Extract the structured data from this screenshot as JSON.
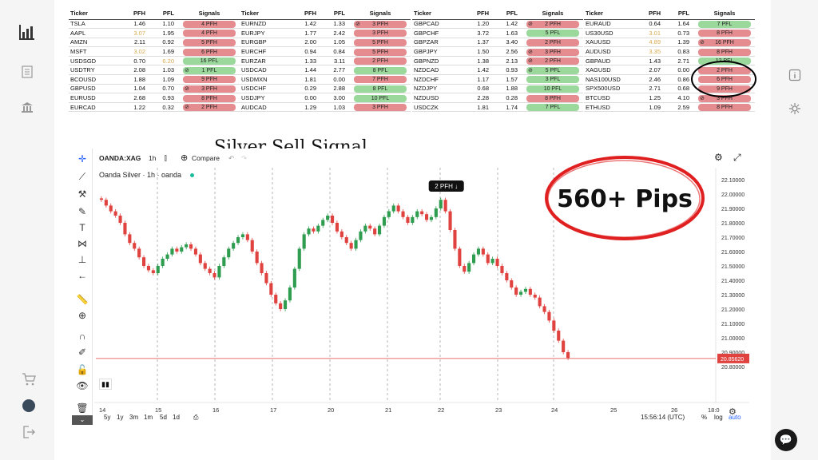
{
  "left_sidebar": {
    "items": [
      "chart-bar-icon",
      "document-icon",
      "bank-icon",
      "cart-icon",
      "user-avatar",
      "logout-icon"
    ]
  },
  "right_sidebar": {
    "items": [
      "info-icon",
      "settings-icon"
    ]
  },
  "tables": [
    {
      "headers": [
        "Ticker",
        "PFH",
        "PFL",
        "Signals"
      ],
      "rows": [
        {
          "ticker": "TSLA",
          "pfh": "1.46",
          "pfl": "1.10",
          "signal": "4 PFH",
          "type": "pfh",
          "icon": false,
          "highlight": false
        },
        {
          "ticker": "AAPL",
          "pfh": "3.07",
          "pfl": "1.95",
          "signal": "4 PFH",
          "type": "pfh",
          "icon": false,
          "highlight": true
        },
        {
          "ticker": "AMZN",
          "pfh": "2.11",
          "pfl": "0.92",
          "signal": "5 PFH",
          "type": "pfh",
          "icon": false,
          "highlight": false
        },
        {
          "ticker": "MSFT",
          "pfh": "3.02",
          "pfl": "1.69",
          "signal": "6 PFH",
          "type": "pfh",
          "icon": false,
          "highlight": true
        },
        {
          "ticker": "USDSGD",
          "pfh": "0.70",
          "pfl": "6.20",
          "signal": "16 PFL",
          "type": "pfl",
          "icon": false,
          "highlight_pfl": true
        },
        {
          "ticker": "USDTRY",
          "pfh": "2.08",
          "pfl": "1.03",
          "signal": "1 PFL",
          "type": "pfl",
          "icon": true
        },
        {
          "ticker": "BCOUSD",
          "pfh": "1.88",
          "pfl": "1.09",
          "signal": "9 PFH",
          "type": "pfh",
          "icon": false
        },
        {
          "ticker": "GBPUSD",
          "pfh": "1.04",
          "pfl": "0.70",
          "signal": "3 PFH",
          "type": "pfh",
          "icon": true
        },
        {
          "ticker": "EURUSD",
          "pfh": "2.68",
          "pfl": "0.93",
          "signal": "8 PFH",
          "type": "pfh",
          "icon": false
        },
        {
          "ticker": "EURCAD",
          "pfh": "1.22",
          "pfl": "0.32",
          "signal": "2 PFH",
          "type": "pfh",
          "icon": true
        }
      ]
    },
    {
      "headers": [
        "Ticker",
        "PFH",
        "PFL",
        "Signals"
      ],
      "rows": [
        {
          "ticker": "EURNZD",
          "pfh": "1.42",
          "pfl": "1.33",
          "signal": "3 PFH",
          "type": "pfh",
          "icon": true
        },
        {
          "ticker": "EURJPY",
          "pfh": "1.77",
          "pfl": "2.42",
          "signal": "3 PFH",
          "type": "pfh",
          "icon": false
        },
        {
          "ticker": "EURGBP",
          "pfh": "2.00",
          "pfl": "1.05",
          "signal": "5 PFH",
          "type": "pfh",
          "icon": false
        },
        {
          "ticker": "EURCHF",
          "pfh": "0.94",
          "pfl": "0.84",
          "signal": "5 PFH",
          "type": "pfh",
          "icon": false
        },
        {
          "ticker": "EURZAR",
          "pfh": "1.33",
          "pfl": "3.11",
          "signal": "2 PFH",
          "type": "pfh",
          "icon": false
        },
        {
          "ticker": "USDCAD",
          "pfh": "1.44",
          "pfl": "2.77",
          "signal": "8 PFL",
          "type": "pfl",
          "icon": false
        },
        {
          "ticker": "USDMXN",
          "pfh": "1.81",
          "pfl": "0.00",
          "signal": "7 PFH",
          "type": "pfh",
          "icon": false
        },
        {
          "ticker": "USDCHF",
          "pfh": "0.29",
          "pfl": "2.88",
          "signal": "8 PFL",
          "type": "pfl",
          "icon": false
        },
        {
          "ticker": "USDJPY",
          "pfh": "0.00",
          "pfl": "3.00",
          "signal": "10 PFL",
          "type": "pfl",
          "icon": false
        },
        {
          "ticker": "AUDCAD",
          "pfh": "1.29",
          "pfl": "1.03",
          "signal": "3 PFH",
          "type": "pfh",
          "icon": false
        }
      ]
    },
    {
      "headers": [
        "Ticker",
        "PFH",
        "PFL",
        "Signals"
      ],
      "rows": [
        {
          "ticker": "GBPCAD",
          "pfh": "1.20",
          "pfl": "1.42",
          "signal": "2 PFH",
          "type": "pfh",
          "icon": true
        },
        {
          "ticker": "GBPCHF",
          "pfh": "3.72",
          "pfl": "1.63",
          "signal": "5 PFL",
          "type": "pfl",
          "icon": false
        },
        {
          "ticker": "GBPZAR",
          "pfh": "1.37",
          "pfl": "3.40",
          "signal": "2 PFH",
          "type": "pfh",
          "icon": false
        },
        {
          "ticker": "GBPJPY",
          "pfh": "1.50",
          "pfl": "2.56",
          "signal": "3 PFH",
          "type": "pfh",
          "icon": true
        },
        {
          "ticker": "GBPNZD",
          "pfh": "1.38",
          "pfl": "2.13",
          "signal": "2 PFH",
          "type": "pfh",
          "icon": true
        },
        {
          "ticker": "NZDCAD",
          "pfh": "1.42",
          "pfl": "0.93",
          "signal": "5 PFL",
          "type": "pfl",
          "icon": true
        },
        {
          "ticker": "NZDCHF",
          "pfh": "1.17",
          "pfl": "1.57",
          "signal": "3 PFL",
          "type": "pfl",
          "icon": false
        },
        {
          "ticker": "NZDJPY",
          "pfh": "0.68",
          "pfl": "1.88",
          "signal": "10 PFL",
          "type": "pfl",
          "icon": false
        },
        {
          "ticker": "NZDUSD",
          "pfh": "2.28",
          "pfl": "0.28",
          "signal": "8 PFH",
          "type": "pfh",
          "icon": false
        },
        {
          "ticker": "USDCZK",
          "pfh": "1.81",
          "pfl": "1.74",
          "signal": "7 PFL",
          "type": "pfl",
          "icon": false
        }
      ]
    },
    {
      "headers": [
        "Ticker",
        "PFH",
        "PFL",
        "Signals"
      ],
      "rows": [
        {
          "ticker": "EURAUD",
          "pfh": "0.64",
          "pfl": "1.64",
          "signal": "7 PFL",
          "type": "pfl",
          "icon": false
        },
        {
          "ticker": "US30USD",
          "pfh": "3.01",
          "pfl": "0.73",
          "signal": "8 PFH",
          "type": "pfh",
          "icon": false,
          "highlight": true
        },
        {
          "ticker": "XAUUSD",
          "pfh": "4.89",
          "pfl": "1.39",
          "signal": "16 PFH",
          "type": "pfh",
          "icon": true,
          "highlight": true
        },
        {
          "ticker": "AUDUSD",
          "pfh": "3.35",
          "pfl": "0.83",
          "signal": "8 PFH",
          "type": "pfh",
          "icon": false,
          "highlight": true
        },
        {
          "ticker": "GBPAUD",
          "pfh": "1.43",
          "pfl": "2.71",
          "signal": "12 PFL",
          "type": "pfl",
          "icon": false
        },
        {
          "ticker": "XAGUSD",
          "pfh": "2.07",
          "pfl": "0.00",
          "signal": "2 PFH",
          "type": "pfh",
          "icon": false
        },
        {
          "ticker": "NAS100USD",
          "pfh": "2.46",
          "pfl": "0.86",
          "signal": "6 PFH",
          "type": "pfh",
          "icon": false
        },
        {
          "ticker": "SPX500USD",
          "pfh": "2.71",
          "pfl": "0.68",
          "signal": "9 PFH",
          "type": "pfh",
          "icon": false
        },
        {
          "ticker": "BTCUSD",
          "pfh": "1.25",
          "pfl": "4.10",
          "signal": "3 PFH",
          "type": "pfh",
          "icon": true
        },
        {
          "ticker": "ETHUSD",
          "pfh": "1.09",
          "pfl": "2.59",
          "signal": "8 PFH",
          "type": "pfh",
          "icon": false
        }
      ]
    }
  ],
  "title": "Silver Sell Signal",
  "callout": "560+ Pips",
  "colors": {
    "pfh": "#e48c8f",
    "pfl": "#9bd89c",
    "up": "#2e9d4f",
    "down": "#e0433f",
    "callout_ring": "#e02020",
    "orange": "#d9a94f"
  },
  "tv": {
    "symbol": "OANDA:XAG",
    "interval": "1h",
    "compare": "Compare",
    "legend": "Oanda Silver · 1h · oanda",
    "signal_label": "2 PFH ↓",
    "last_price": "20.85620",
    "price_ticks": [
      "22.10000",
      "22.00000",
      "21.90000",
      "21.80000",
      "21.70000",
      "21.60000",
      "21.50000",
      "21.40000",
      "21.30000",
      "21.20000",
      "21.10000",
      "21.00000",
      "20.90000",
      "20.80000"
    ],
    "date_ticks": [
      "14",
      "15",
      "16",
      "17",
      "20",
      "21",
      "22",
      "23",
      "24",
      "25",
      "26",
      "18:0"
    ],
    "timeframes": [
      "5y",
      "1y",
      "3m",
      "1m",
      "5d",
      "1d"
    ],
    "time": "15:56:14 (UTC)",
    "scale_opts": [
      "%",
      "log",
      "auto"
    ]
  },
  "chart_data": {
    "type": "candlestick",
    "title": "Oanda Silver · 1h · oanda",
    "ylim": [
      20.75,
      22.15
    ],
    "x": [
      "14",
      "15",
      "16",
      "17",
      "20",
      "21",
      "22",
      "23",
      "24"
    ],
    "last": 20.8562,
    "closes": [
      21.96,
      21.92,
      21.88,
      21.85,
      21.8,
      21.72,
      21.66,
      21.62,
      21.56,
      21.5,
      21.47,
      21.45,
      21.5,
      21.55,
      21.58,
      21.62,
      21.6,
      21.63,
      21.65,
      21.62,
      21.58,
      21.52,
      21.48,
      21.45,
      21.42,
      21.5,
      21.56,
      21.62,
      21.66,
      21.7,
      21.72,
      21.68,
      21.6,
      21.52,
      21.45,
      21.38,
      21.3,
      21.24,
      21.2,
      21.26,
      21.35,
      21.48,
      21.62,
      21.72,
      21.76,
      21.74,
      21.78,
      21.82,
      21.85,
      21.8,
      21.74,
      21.7,
      21.66,
      21.62,
      21.68,
      21.74,
      21.78,
      21.76,
      21.72,
      21.78,
      21.84,
      21.88,
      21.92,
      21.88,
      21.84,
      21.8,
      21.84,
      21.88,
      21.86,
      21.82,
      21.84,
      21.9,
      21.96,
      21.88,
      21.75,
      21.62,
      21.5,
      21.46,
      21.52,
      21.58,
      21.62,
      21.58,
      21.52,
      21.55,
      21.5,
      21.45,
      21.4,
      21.35,
      21.3,
      21.32,
      21.34,
      21.3,
      21.28,
      21.22,
      21.18,
      21.12,
      21.05,
      20.98,
      20.9,
      20.86
    ]
  }
}
